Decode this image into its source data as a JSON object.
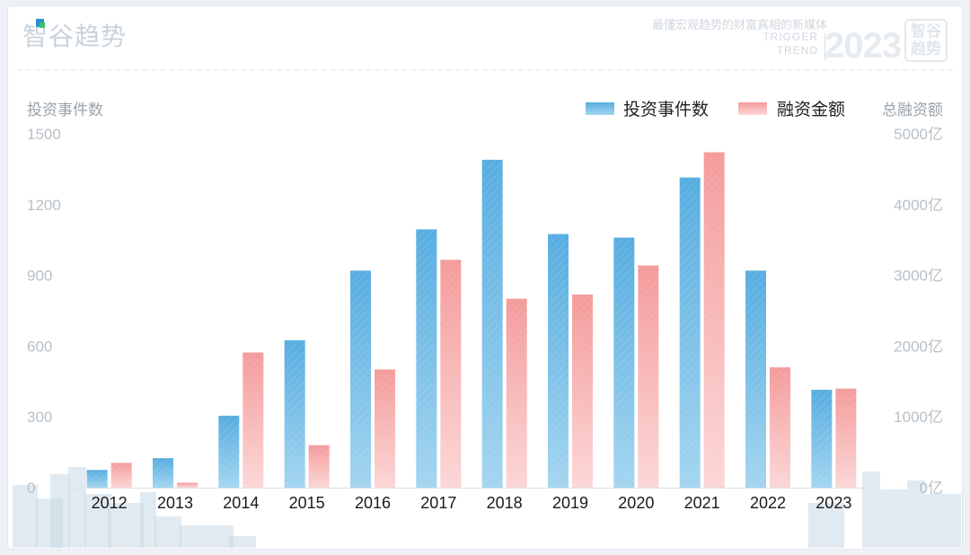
{
  "brand": {
    "name": "智谷趋势",
    "slogan": "最懂宏观趋势的财富真相的新媒体",
    "trigger": "TRIGGER",
    "trend": "TREND",
    "year": "2023",
    "stamp": "智谷趋势"
  },
  "colors": {
    "blue": "#5fb4e3",
    "blue_light": "#a5d6f1",
    "red": "#f5a0a0",
    "red_light": "#fbd2d2",
    "city": "#c9d8e4"
  },
  "chart_data": {
    "type": "bar",
    "title": "",
    "categories": [
      "2012",
      "2013",
      "2014",
      "2015",
      "2016",
      "2017",
      "2018",
      "2019",
      "2020",
      "2021",
      "2022",
      "2023"
    ],
    "ylabel": "投资事件数",
    "y2label": "总融资额",
    "ylim": [
      0,
      1500
    ],
    "y2lim": [
      0,
      5000
    ],
    "yticks": [
      "0",
      "300",
      "600",
      "900",
      "1200",
      "1500"
    ],
    "y2ticks": [
      "0亿",
      "1000亿",
      "2000亿",
      "3000亿",
      "4000亿",
      "5000亿"
    ],
    "legend_position": "top-right",
    "grid": false,
    "series": [
      {
        "name": "投资事件数",
        "axis": "left",
        "values": [
          75,
          125,
          305,
          625,
          920,
          1095,
          1390,
          1075,
          1060,
          1315,
          920,
          415
        ]
      },
      {
        "name": "融资金额",
        "axis": "right",
        "values": [
          350,
          70,
          1910,
          600,
          1670,
          3220,
          2670,
          2730,
          3140,
          4740,
          1700,
          1400
        ]
      }
    ]
  }
}
